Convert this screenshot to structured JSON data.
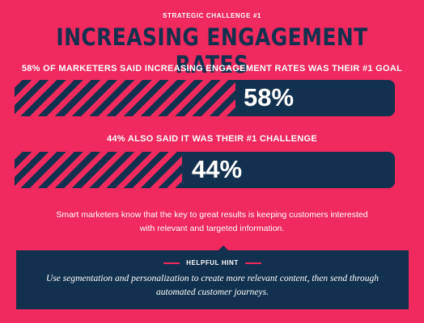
{
  "header": {
    "eyebrow": "STRATEGIC CHALLENGE #1",
    "title": "INCREASING ENGAGEMENT RATES"
  },
  "stats": [
    {
      "label": "58% OF MARKETERS SAID INCREASING ENGAGEMENT RATES WAS THEIR #1 GOAL",
      "value_text": "58%",
      "percent": 58
    },
    {
      "label": "44% ALSO SAID IT WAS THEIR #1 CHALLENGE",
      "value_text": "44%",
      "percent": 44
    }
  ],
  "body_text": "Smart marketers know that the key to great results is keeping customers interested with relevant and targeted information.",
  "hint": {
    "title": "HELPFUL HINT",
    "text": "Use segmentation and personalization to create more relevant content, then send through automated customer journeys."
  },
  "colors": {
    "background": "#f0295e",
    "navy": "#12314e",
    "white": "#ffffff"
  }
}
